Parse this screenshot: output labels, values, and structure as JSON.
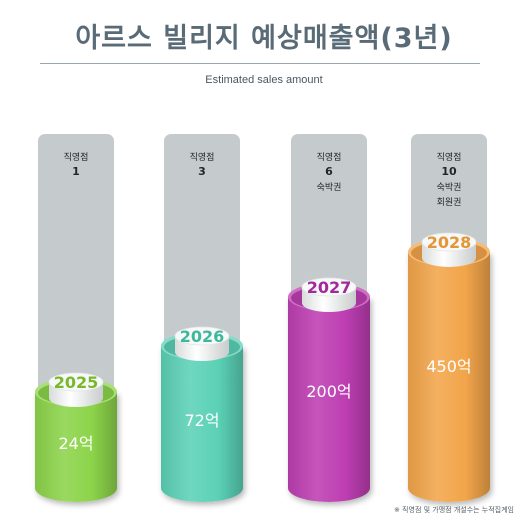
{
  "header": {
    "title": "아르스 빌리지 예상매출액(3년)",
    "subtitle": "Estimated sales amount"
  },
  "footnote": "※ 직영점 및 가맹점 개설수는 누적집계임",
  "chart_data": {
    "type": "bar",
    "title": "아르스 빌리지 예상매출액(3년)",
    "subtitle": "Estimated sales amount",
    "unit": "억",
    "categories": [
      "2025",
      "2026",
      "2027",
      "2028"
    ],
    "values": [
      24,
      72,
      200,
      450
    ],
    "value_labels": [
      "24억",
      "72억",
      "200억",
      "450억"
    ],
    "annotations": [
      [
        "직영점",
        "1"
      ],
      [
        "직영점",
        "3"
      ],
      [
        "직영점",
        "6",
        "숙박권"
      ],
      [
        "직영점",
        "10",
        "숙박권",
        "회원권"
      ]
    ],
    "colors": [
      "#8cd44a",
      "#5bd1b6",
      "#bd3eb2",
      "#f2a54a"
    ],
    "year_colors": [
      "#79b82a",
      "#3fb79b",
      "#a3289b",
      "#e59534"
    ],
    "background_column_color": "#c5cbcc",
    "grid": false,
    "legend": "none"
  }
}
